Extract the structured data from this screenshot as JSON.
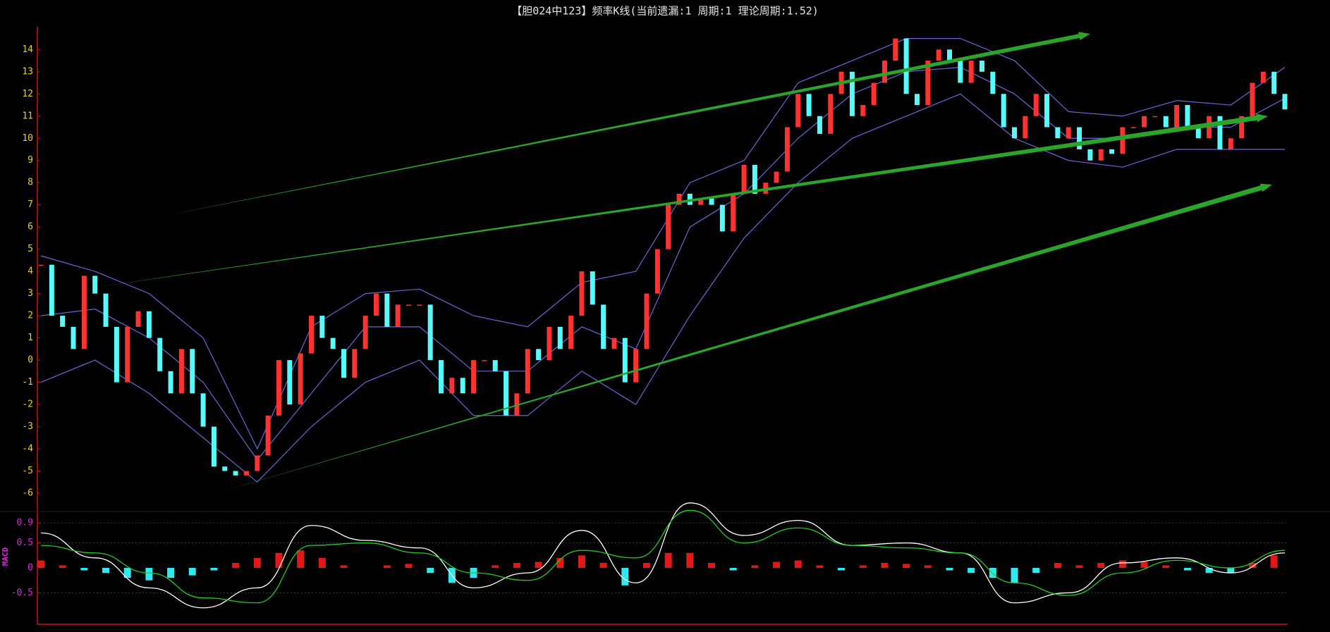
{
  "chart_data": [
    {
      "type": "candlestick",
      "title": "【胆024中123】频率K线(当前遗漏:1 周期:1 理论周期:1.52)",
      "close": [
        4.3,
        2,
        1.5,
        0.5,
        3.8,
        3,
        1.5,
        -1,
        1.5,
        2.2,
        1,
        -0.5,
        -1.5,
        0.5,
        -1.5,
        -3,
        -4.8,
        -5,
        -5.2,
        -5,
        -4.3,
        -2.5,
        0,
        -2,
        0.3,
        2,
        1,
        0.5,
        -0.8,
        0.5,
        2,
        3,
        1.5,
        2.5,
        2.5,
        2.5,
        0,
        -1.5,
        -0.8,
        -1.5,
        0,
        0,
        -0.5,
        -2.5,
        -1.5,
        0.5,
        0,
        1.5,
        0.5,
        2,
        4,
        2.5,
        0.5,
        1,
        -1,
        0.5,
        3,
        5,
        7,
        7.5,
        7,
        7.3,
        7,
        5.8,
        7.5,
        8.8,
        7.5,
        8,
        8.5,
        10.5,
        12,
        11,
        10.2,
        12,
        13,
        11,
        11.5,
        12.5,
        13.5,
        14.5,
        12,
        11.5,
        13.5,
        14,
        13.5,
        12.5,
        13.5,
        13,
        12,
        10.5,
        10,
        11,
        12,
        10.5,
        10,
        10.5,
        9.5,
        9,
        9.5,
        9.3,
        10.5,
        10.5,
        11,
        11,
        10.5,
        11.5,
        10.5,
        10,
        11,
        9.5,
        10,
        11,
        12.5,
        13,
        12,
        11.3
      ],
      "up_color": "#ff3232",
      "down_color": "#54fcfc",
      "bands": {
        "color": "#6c64d8",
        "x": [
          0,
          5,
          10,
          15,
          20,
          25,
          30,
          35,
          40,
          45,
          50,
          55,
          60,
          65,
          70,
          75,
          80,
          85,
          90,
          95,
          100,
          105,
          110,
          115
        ],
        "lines": [
          [
            4.7,
            4,
            3,
            1,
            -4,
            1.5,
            3,
            3.2,
            2,
            1.5,
            3.5,
            4,
            8,
            9,
            12.5,
            13.5,
            14.5,
            14.5,
            13.5,
            11.2,
            11,
            11.7,
            11.5,
            13.2
          ],
          [
            2,
            2.3,
            1,
            -1,
            -4.5,
            -1.5,
            1.5,
            1.5,
            -0.5,
            -0.5,
            1.5,
            0.5,
            6,
            7.5,
            10,
            12,
            13,
            13.2,
            12,
            10,
            10,
            10.5,
            10.5,
            11.8
          ],
          [
            -1,
            0,
            -1.5,
            -3.5,
            -5.5,
            -3,
            -1,
            0,
            -2.5,
            -2.5,
            -0.5,
            -2,
            2,
            5.5,
            8,
            10,
            11,
            12,
            10,
            9,
            8.7,
            9.5,
            9.5,
            9.5
          ]
        ]
      },
      "ylim": [
        -6.7,
        14.9
      ],
      "yticks": [
        -6,
        -5,
        -4,
        -3,
        -2,
        -1,
        0,
        1,
        2,
        3,
        4,
        5,
        6,
        7,
        8,
        9,
        10,
        11,
        12,
        13,
        14
      ]
    },
    {
      "type": "combo",
      "label": "MACD",
      "lines": {
        "x": [
          0,
          5,
          10,
          15,
          20,
          25,
          30,
          35,
          40,
          45,
          50,
          55,
          60,
          65,
          70,
          75,
          80,
          85,
          90,
          95,
          100,
          105,
          110,
          115
        ],
        "colors": [
          "#ffffff",
          "#22cc22"
        ],
        "values": [
          [
            0.7,
            0.2,
            -0.4,
            -0.8,
            -0.4,
            0.85,
            0.55,
            0.4,
            -0.4,
            -0.1,
            0.75,
            -0.3,
            1.3,
            0.65,
            0.95,
            0.45,
            0.5,
            0.3,
            -0.7,
            -0.5,
            0.1,
            0.2,
            -0.1,
            0.3
          ],
          [
            0.45,
            0.3,
            -0.1,
            -0.6,
            -0.7,
            0.45,
            0.5,
            0.3,
            -0.1,
            -0.25,
            0.35,
            0.2,
            1.15,
            0.5,
            0.8,
            0.45,
            0.4,
            0.3,
            -0.3,
            -0.55,
            -0.1,
            0.15,
            0,
            0.35
          ]
        ]
      },
      "histogram": {
        "x": [
          0,
          2,
          4,
          6,
          8,
          10,
          12,
          14,
          16,
          18,
          20,
          22,
          24,
          26,
          28,
          30,
          32,
          34,
          36,
          38,
          40,
          42,
          44,
          46,
          48,
          50,
          52,
          54,
          56,
          58,
          60,
          62,
          64,
          66,
          68,
          70,
          72,
          74,
          76,
          78,
          80,
          82,
          84,
          86,
          88,
          90,
          92,
          94,
          96,
          98,
          100,
          102,
          104,
          106,
          108,
          110,
          112,
          114
        ],
        "values": [
          0.15,
          0.05,
          -0.05,
          -0.1,
          -0.2,
          -0.25,
          -0.2,
          -0.15,
          -0.05,
          0.1,
          0.2,
          0.3,
          0.35,
          0.2,
          0.05,
          0,
          0.05,
          0.08,
          -0.1,
          -0.3,
          -0.2,
          0.05,
          0.1,
          0.12,
          0.2,
          0.25,
          0.1,
          -0.35,
          0.1,
          0.3,
          0.3,
          0.1,
          -0.05,
          0.05,
          0.12,
          0.15,
          0.05,
          -0.05,
          0.05,
          0.1,
          0.08,
          0.05,
          -0.05,
          -0.1,
          -0.2,
          -0.3,
          -0.1,
          0.1,
          0.05,
          0.1,
          0.15,
          0.12,
          0.05,
          -0.05,
          -0.1,
          -0.1,
          0.1,
          0.25
        ]
      },
      "ylim": [
        -1.1,
        1.1
      ],
      "yticks": [
        0.9,
        0.5,
        0,
        -0.5
      ],
      "grid": true
    }
  ]
}
